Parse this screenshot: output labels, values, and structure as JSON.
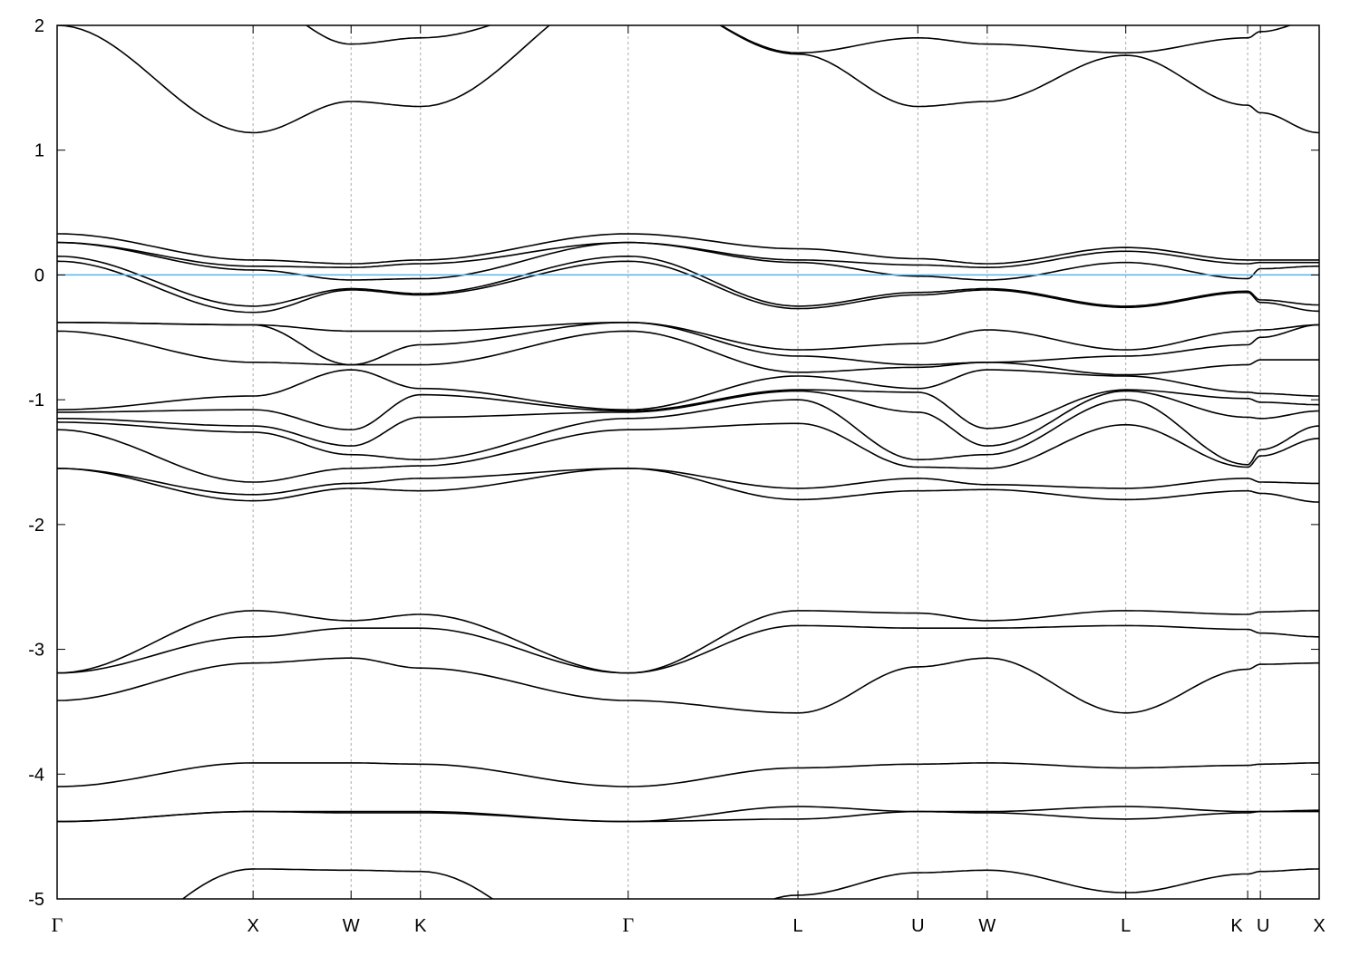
{
  "chart_data": {
    "type": "line",
    "title": "",
    "xlabel": "",
    "ylabel": "",
    "ylim": [
      -5,
      2
    ],
    "yticks": [
      2,
      1,
      0,
      -1,
      -2,
      -3,
      -4,
      -5
    ],
    "ytick_labels": [
      "2",
      "1",
      "0",
      "-1",
      "-2",
      "-3",
      "-4",
      "-5"
    ],
    "xtick_labels": [
      "Γ",
      "X",
      "W",
      "K",
      "Γ",
      "L",
      "U",
      "W",
      "L",
      "K",
      "U",
      "X"
    ],
    "grid": "vertical dashed lines at high-symmetry points",
    "legend": "none",
    "fermi_level": 0,
    "colors": {
      "bands": "#000000",
      "fermi_line": "#56b4e9",
      "grid": "#aaaaaa"
    },
    "bands_at_high_symmetry_points": [
      [
        -5.6,
        -4.76,
        -4.77,
        -4.78,
        -5.6,
        -4.97,
        -4.79,
        -4.77,
        -4.95,
        -4.8,
        -4.78,
        -4.76
      ],
      [
        -4.38,
        -4.3,
        -4.31,
        -4.31,
        -4.38,
        -4.36,
        -4.3,
        -4.31,
        -4.36,
        -4.31,
        -4.3,
        -4.3
      ],
      [
        -4.38,
        -4.3,
        -4.3,
        -4.3,
        -4.38,
        -4.26,
        -4.3,
        -4.3,
        -4.26,
        -4.3,
        -4.3,
        -4.29
      ],
      [
        -4.1,
        -3.91,
        -3.91,
        -3.92,
        -4.1,
        -3.95,
        -3.92,
        -3.91,
        -3.95,
        -3.93,
        -3.92,
        -3.91
      ],
      [
        -3.41,
        -3.11,
        -3.07,
        -3.15,
        -3.41,
        -3.51,
        -3.14,
        -3.07,
        -3.51,
        -3.16,
        -3.12,
        -3.11
      ],
      [
        -3.19,
        -2.9,
        -2.83,
        -2.83,
        -3.19,
        -2.81,
        -2.83,
        -2.83,
        -2.81,
        -2.84,
        -2.87,
        -2.9
      ],
      [
        -3.19,
        -2.69,
        -2.77,
        -2.72,
        -3.19,
        -2.69,
        -2.71,
        -2.77,
        -2.69,
        -2.72,
        -2.7,
        -2.69
      ],
      [
        -1.55,
        -1.81,
        -1.71,
        -1.73,
        -1.55,
        -1.8,
        -1.73,
        -1.72,
        -1.8,
        -1.73,
        -1.75,
        -1.82
      ],
      [
        -1.55,
        -1.76,
        -1.67,
        -1.63,
        -1.55,
        -1.71,
        -1.63,
        -1.68,
        -1.71,
        -1.63,
        -1.66,
        -1.67
      ],
      [
        -1.24,
        -1.66,
        -1.55,
        -1.53,
        -1.24,
        -1.19,
        -1.54,
        -1.55,
        -1.2,
        -1.54,
        -1.45,
        -1.31
      ],
      [
        -1.18,
        -1.26,
        -1.44,
        -1.48,
        -1.15,
        -1.0,
        -1.48,
        -1.44,
        -1.0,
        -1.52,
        -1.4,
        -1.21
      ],
      [
        -1.15,
        -1.21,
        -1.37,
        -1.14,
        -1.1,
        -0.93,
        -1.1,
        -1.37,
        -0.93,
        -1.14,
        -1.15,
        -1.09
      ],
      [
        -1.1,
        -1.08,
        -1.24,
        -0.96,
        -1.09,
        -0.92,
        -0.94,
        -1.23,
        -0.92,
        -0.99,
        -1.02,
        -1.04
      ],
      [
        -1.08,
        -0.97,
        -0.76,
        -0.91,
        -1.08,
        -0.81,
        -0.91,
        -0.76,
        -0.81,
        -0.94,
        -0.95,
        -0.97
      ],
      [
        -0.45,
        -0.7,
        -0.72,
        -0.72,
        -0.45,
        -0.78,
        -0.74,
        -0.7,
        -0.8,
        -0.72,
        -0.68,
        -0.68
      ],
      [
        -0.38,
        -0.4,
        -0.72,
        -0.56,
        -0.38,
        -0.65,
        -0.72,
        -0.7,
        -0.65,
        -0.56,
        -0.5,
        -0.4
      ],
      [
        -0.38,
        -0.4,
        -0.45,
        -0.45,
        -0.38,
        -0.6,
        -0.55,
        -0.44,
        -0.6,
        -0.45,
        -0.44,
        -0.4
      ],
      [
        0.11,
        -0.3,
        -0.12,
        -0.16,
        0.11,
        -0.27,
        -0.16,
        -0.12,
        -0.26,
        -0.14,
        -0.22,
        -0.29
      ],
      [
        0.15,
        -0.25,
        -0.11,
        -0.15,
        0.15,
        -0.25,
        -0.14,
        -0.11,
        -0.25,
        -0.13,
        -0.2,
        -0.24
      ],
      [
        0.26,
        0.04,
        -0.04,
        -0.03,
        0.26,
        0.1,
        -0.01,
        -0.04,
        0.1,
        -0.03,
        0.05,
        0.07
      ],
      [
        0.26,
        0.07,
        0.06,
        0.09,
        0.26,
        0.12,
        0.08,
        0.06,
        0.19,
        0.09,
        0.1,
        0.1
      ],
      [
        0.33,
        0.12,
        0.09,
        0.12,
        0.33,
        0.21,
        0.13,
        0.09,
        0.22,
        0.12,
        0.12,
        0.12
      ],
      [
        2.0,
        1.14,
        1.39,
        1.35,
        2.3,
        1.77,
        1.35,
        1.39,
        1.76,
        1.36,
        1.3,
        1.14
      ],
      [
        2.6,
        2.2,
        1.85,
        1.9,
        2.3,
        1.78,
        1.9,
        1.85,
        1.78,
        1.9,
        1.95,
        2.05
      ]
    ]
  }
}
